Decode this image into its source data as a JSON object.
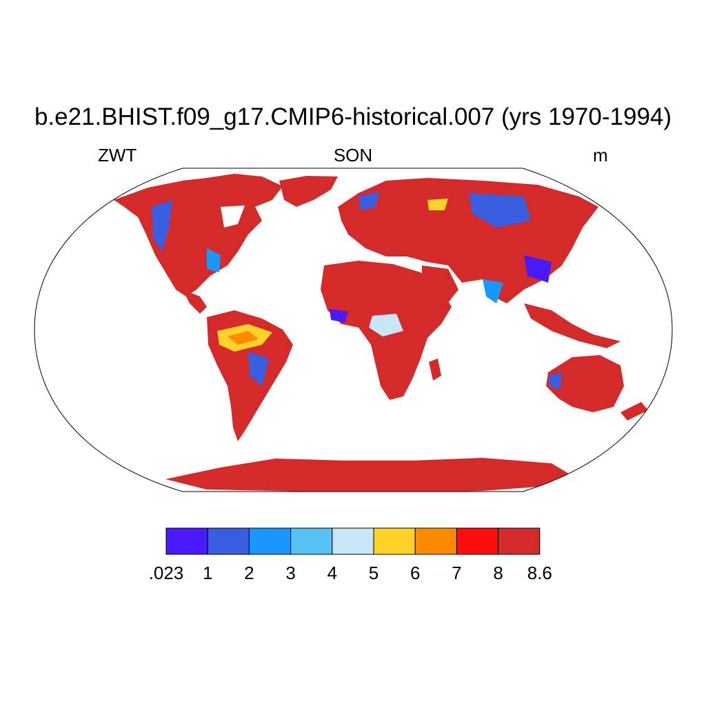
{
  "title": "b.e21.BHIST.f09_g17.CMIP6-historical.007 (yrs 1970-1994)",
  "left_string": "ZWT",
  "center_string": "SON",
  "right_string": "m",
  "colorbar": {
    "labels": [
      ".023",
      "1",
      "2",
      "3",
      "4",
      "5",
      "6",
      "7",
      "8",
      "8.6"
    ],
    "colors": [
      "#4a1aff",
      "#3a5ee0",
      "#1a96ff",
      "#55c0f2",
      "#c9e6f7",
      "#ffd22a",
      "#ff8a00",
      "#ff0c0c",
      "#d42a2a"
    ]
  },
  "ocean_color": "#ffffff",
  "dominant_land_color": "#d42a2a"
}
